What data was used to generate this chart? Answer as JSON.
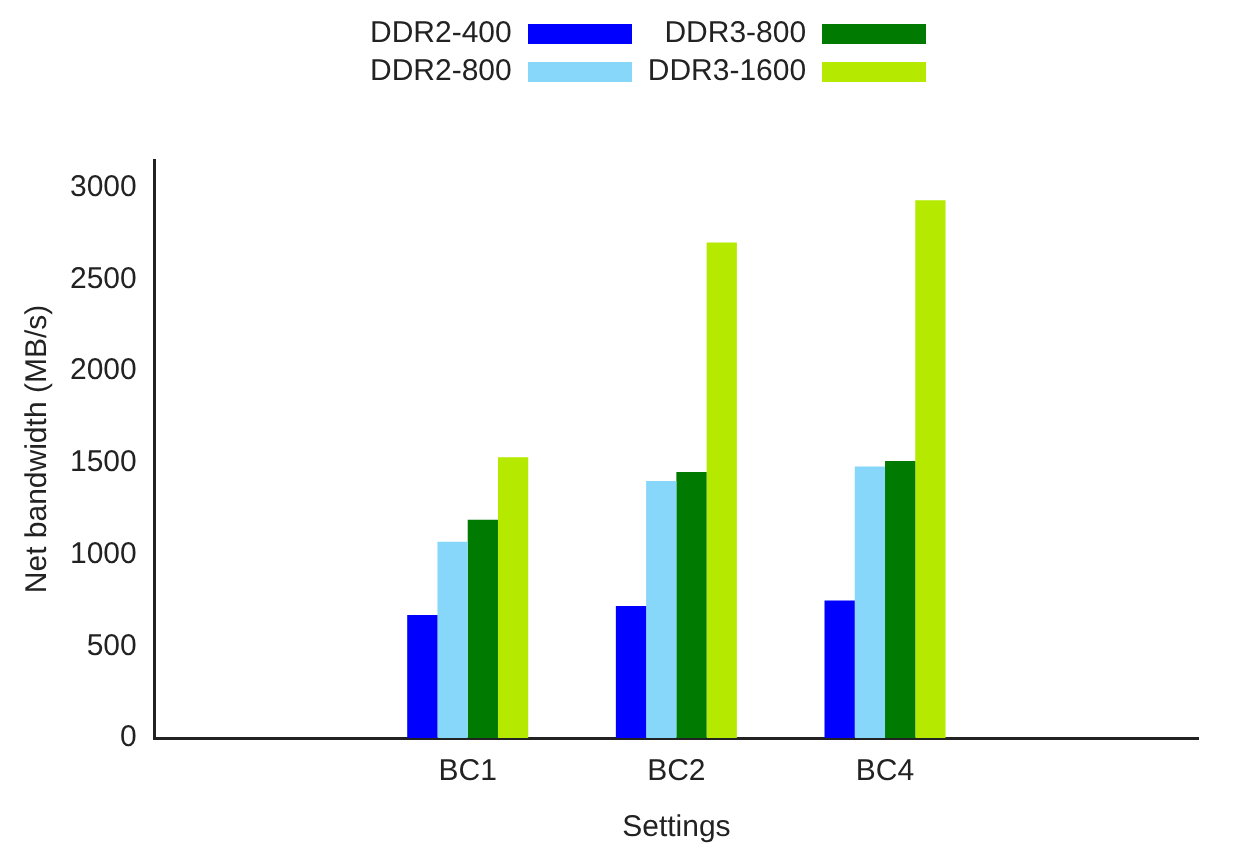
{
  "chart_data": {
    "type": "bar",
    "xlabel": "Settings",
    "ylabel": "Net bandwidth (MB/s)",
    "categories": [
      null,
      "BC1",
      "BC2",
      "BC4",
      null
    ],
    "series": [
      {
        "name": "DDR2-400",
        "color": "#0000ff",
        "values": [
          null,
          670,
          720,
          750,
          null
        ]
      },
      {
        "name": "DDR2-800",
        "color": "#87d7fa",
        "values": [
          null,
          1070,
          1400,
          1480,
          null
        ]
      },
      {
        "name": "DDR3-800",
        "color": "#007a00",
        "values": [
          null,
          1190,
          1450,
          1510,
          null
        ]
      },
      {
        "name": "DDR3-1600",
        "color": "#b5ea00",
        "values": [
          null,
          1530,
          2700,
          2930,
          null
        ]
      }
    ],
    "ylim": [
      0,
      3150
    ],
    "yticks": [
      0,
      500,
      1000,
      1500,
      2000,
      2500,
      3000
    ],
    "grid": false,
    "legend": "top"
  }
}
